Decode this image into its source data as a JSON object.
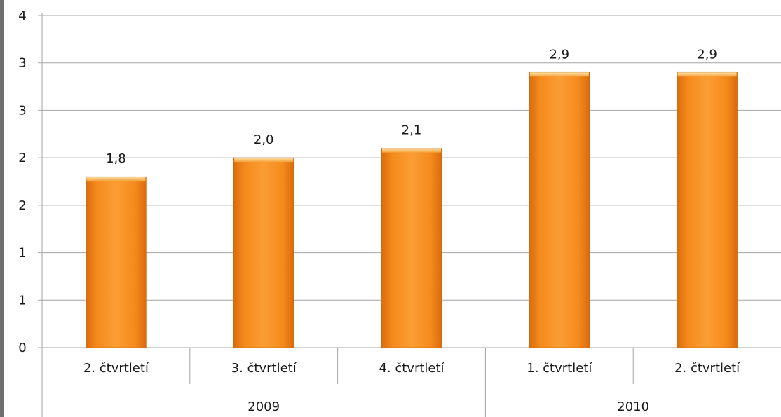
{
  "chart_data": {
    "type": "bar",
    "title": "",
    "xlabel": "",
    "ylabel": "",
    "categories": [
      "2. čtvrtletí",
      "3. čtvrtletí",
      "4. čtvrtletí",
      "1. čtvrtletí",
      "2. čtvrtletí"
    ],
    "groups": [
      {
        "label": "2009",
        "count": 3
      },
      {
        "label": "2010",
        "count": 2
      }
    ],
    "values": [
      1.8,
      2.0,
      2.1,
      2.9,
      2.9
    ],
    "value_labels": [
      "1,8",
      "2,0",
      "2,1",
      "2,9",
      "2,9"
    ],
    "ylim": [
      0,
      3.5
    ],
    "y_tick_values": [
      0,
      0.5,
      1,
      1.5,
      2,
      2.5,
      3,
      3.5
    ],
    "y_tick_labels": [
      "0",
      "1",
      "1",
      "2",
      "2",
      "3",
      "3",
      "4"
    ],
    "grid": true,
    "legend": "none",
    "colors": {
      "bar": "#f7901e",
      "bar_light": "#fbb862",
      "bar_dark": "#e07510",
      "grid": "#a6a6a6"
    }
  }
}
